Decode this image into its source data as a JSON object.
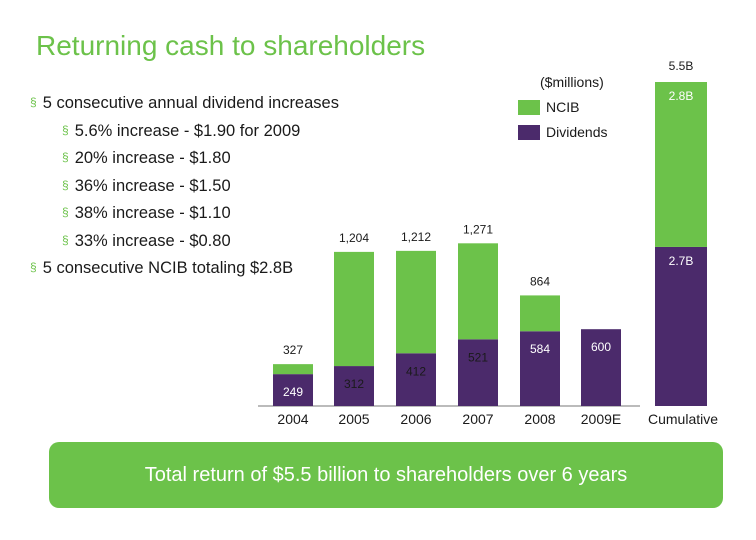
{
  "title": "Returning cash to shareholders",
  "bullets": [
    {
      "level": 1,
      "text": "5 consecutive annual dividend increases"
    },
    {
      "level": 2,
      "text": "5.6% increase - $1.90 for 2009"
    },
    {
      "level": 2,
      "text": "20% increase - $1.80"
    },
    {
      "level": 2,
      "text": "36% increase - $1.50"
    },
    {
      "level": 2,
      "text": "38% increase - $1.10"
    },
    {
      "level": 2,
      "text": "33% increase - $0.80"
    },
    {
      "level": 1,
      "text": "5 consecutive NCIB totaling $2.8B"
    }
  ],
  "legend": {
    "unit": "($millions)",
    "items": [
      {
        "label": "NCIB",
        "color": "#6cc24a"
      },
      {
        "label": "Dividends",
        "color": "#4b2a6b"
      }
    ]
  },
  "banner": "Total return of $5.5 billion to shareholders over 6 years",
  "chart_data": {
    "type": "bar",
    "stacked": true,
    "categories": [
      "2004",
      "2005",
      "2006",
      "2007",
      "2008",
      "2009E"
    ],
    "series": [
      {
        "name": "Dividends",
        "color": "#4b2a6b",
        "values": [
          249,
          312,
          412,
          521,
          584,
          600
        ],
        "labels": [
          "249",
          "312",
          "412",
          "521",
          "584",
          "600"
        ]
      },
      {
        "name": "NCIB",
        "color": "#6cc24a",
        "values": [
          78,
          892,
          800,
          750,
          280,
          0
        ]
      }
    ],
    "totals": [
      327,
      1204,
      1212,
      1271,
      864,
      600
    ],
    "total_labels": [
      "327",
      "1,204",
      "1,212",
      "1,271",
      "864",
      ""
    ],
    "cumulative": {
      "category": "Cumulative",
      "total_label": "5.5B",
      "ncib_label": "2.8B",
      "dividends_label": "2.7B",
      "ncib_value": 2.8,
      "dividends_value": 2.7
    }
  }
}
